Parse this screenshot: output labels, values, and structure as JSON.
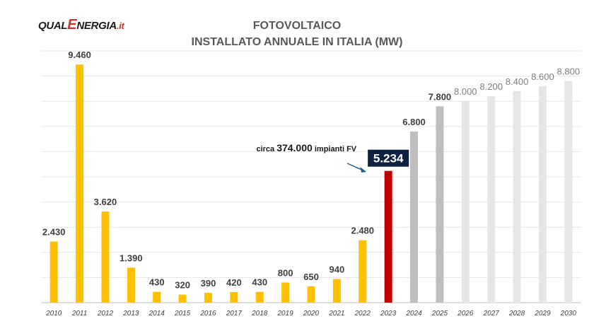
{
  "logo": {
    "part1": "QUAL",
    "part2": "E",
    "part3": "NERGIA",
    "part4": ".it"
  },
  "chart_data": {
    "type": "bar",
    "title": "FOTOVOLTAICO",
    "subtitle": "INSTALLATO ANNUALE IN ITALIA (MW)",
    "categories": [
      "2010",
      "2011",
      "2012",
      "2013",
      "2014",
      "2015",
      "2016",
      "2017",
      "2018",
      "2019",
      "2020",
      "2021",
      "2022",
      "2023",
      "2024",
      "2025",
      "2026",
      "2027",
      "2028",
      "2029",
      "2030"
    ],
    "values": [
      2430,
      9460,
      3620,
      1390,
      430,
      320,
      390,
      420,
      430,
      800,
      650,
      940,
      2480,
      5234,
      6800,
      7800,
      8000,
      8200,
      8400,
      8600,
      8800
    ],
    "value_labels": [
      "2.430",
      "9.460",
      "3.620",
      "1.390",
      "430",
      "320",
      "390",
      "420",
      "430",
      "800",
      "650",
      "940",
      "2.480",
      "5.234",
      "6.800",
      "7.800",
      "8.000",
      "8.200",
      "8.400",
      "8.600",
      "8.800"
    ],
    "bar_colors": [
      "#FFC000",
      "#FFC000",
      "#FFC000",
      "#FFC000",
      "#FFC000",
      "#FFC000",
      "#FFC000",
      "#FFC000",
      "#FFC000",
      "#FFC000",
      "#FFC000",
      "#FFC000",
      "#FFC000",
      "#C00000",
      "#BFBFBF",
      "#BFBFBF",
      "#E7E6E6",
      "#E7E6E6",
      "#E7E6E6",
      "#E7E6E6",
      "#E7E6E6"
    ],
    "ylim": [
      0,
      10000
    ],
    "grid": true,
    "annotation": {
      "prefix": "circa ",
      "number": "374.000",
      "suffix": " impianti FV",
      "category": "2023"
    },
    "highlight_label_bg": "#0D2240"
  }
}
